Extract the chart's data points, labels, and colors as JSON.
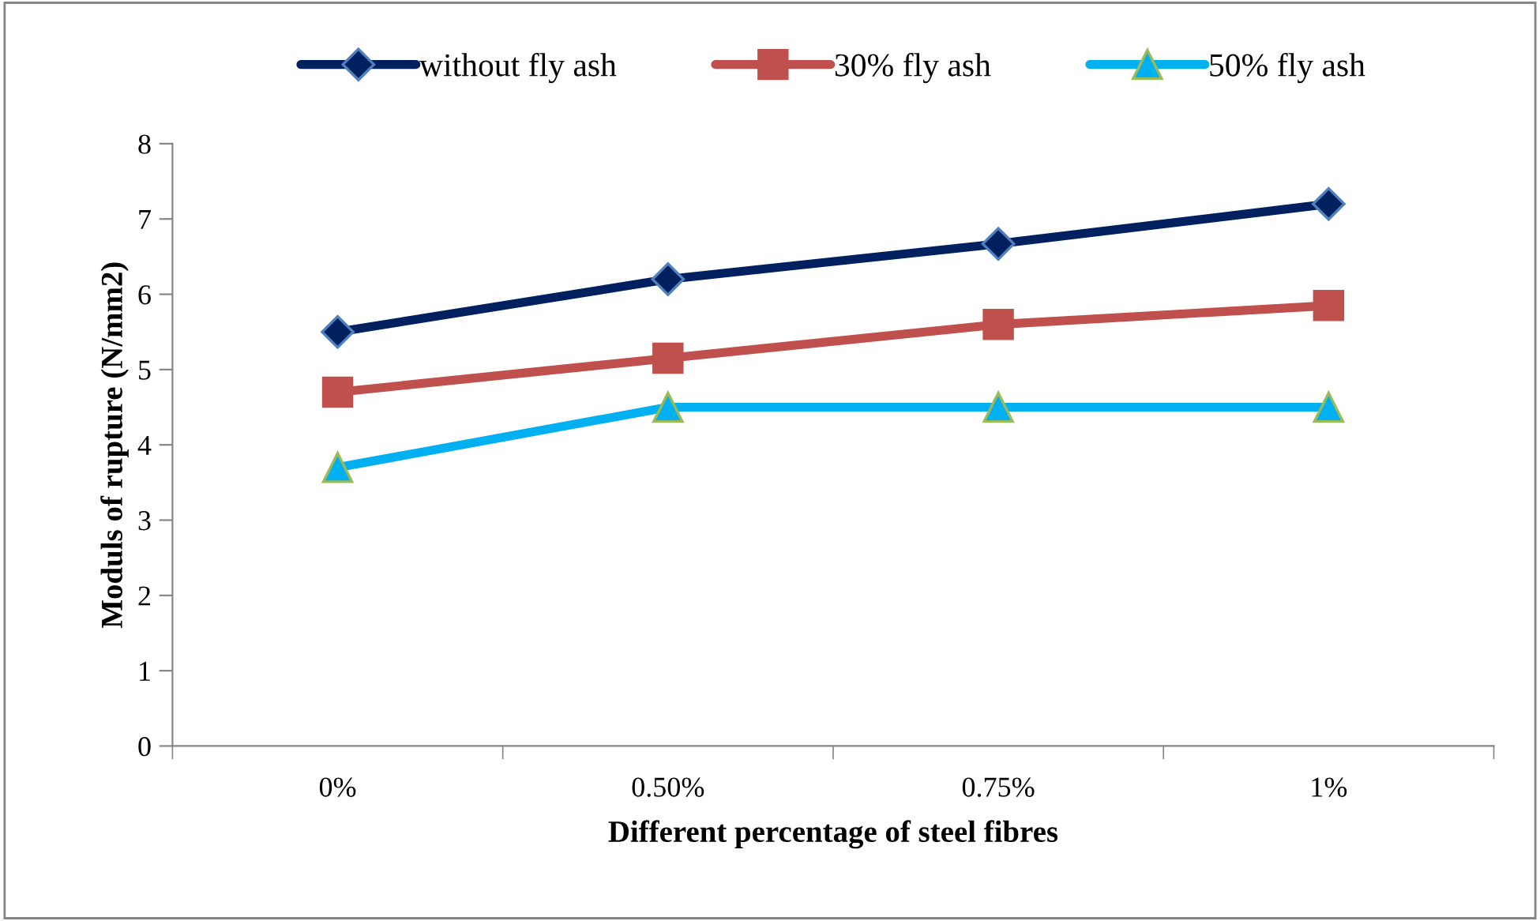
{
  "chart_data": {
    "type": "line",
    "xlabel": "Different percentage of steel fibres",
    "ylabel": "Moduls of rupture (N/mm2)",
    "categories": [
      "0%",
      "0.50%",
      "0.75%",
      "1%"
    ],
    "series": [
      {
        "name": "without fly ash",
        "color": "#002060",
        "marker": "diamond",
        "values": [
          5.5,
          6.2,
          6.67,
          7.2
        ]
      },
      {
        "name": "30% fly ash",
        "color": "#c0504d",
        "marker": "square",
        "values": [
          4.7,
          5.15,
          5.6,
          5.85
        ]
      },
      {
        "name": "50% fly ash",
        "color": "#00b0f0",
        "marker": "triangle",
        "values": [
          3.7,
          4.5,
          4.5,
          4.5
        ]
      }
    ],
    "ylim": [
      0,
      8
    ],
    "yticks": [
      0,
      1,
      2,
      3,
      4,
      5,
      6,
      7,
      8
    ],
    "grid": false,
    "legend": "top",
    "line_style": "solid"
  }
}
